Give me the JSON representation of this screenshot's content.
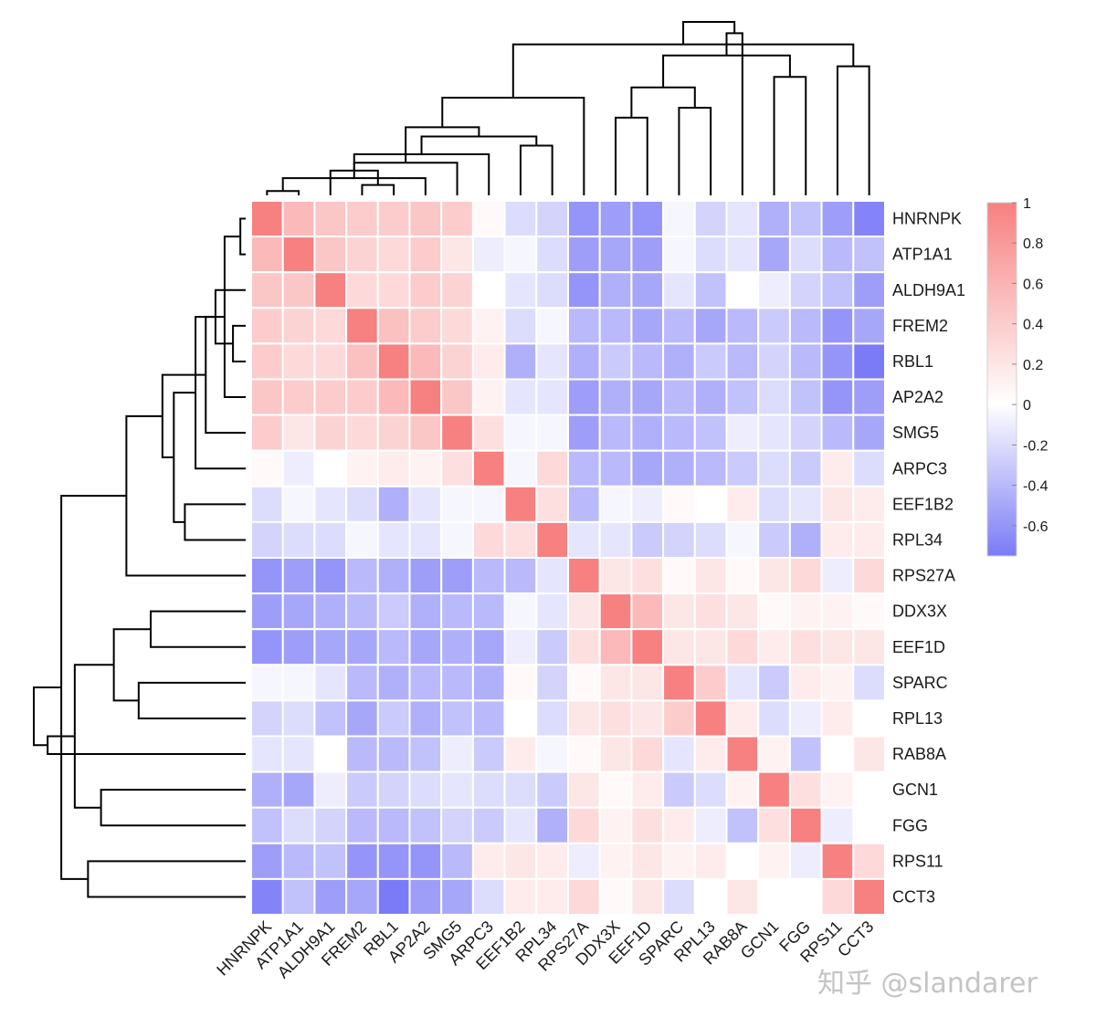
{
  "chart_data": {
    "type": "heatmap",
    "title": "",
    "genes": [
      "HNRNPK",
      "ATP1A1",
      "ALDH9A1",
      "FREM2",
      "RBL1",
      "AP2A2",
      "SMG5",
      "ARPC3",
      "EEF1B2",
      "RPL34",
      "RPS27A",
      "DDX3X",
      "EEF1D",
      "SPARC",
      "RPL13",
      "RAB8A",
      "GCN1",
      "FGG",
      "RPS11",
      "CCT3"
    ],
    "values": [
      [
        1.0,
        0.55,
        0.45,
        0.4,
        0.4,
        0.45,
        0.4,
        0.05,
        -0.2,
        -0.25,
        -0.6,
        -0.55,
        -0.6,
        -0.05,
        -0.25,
        -0.15,
        -0.45,
        -0.35,
        -0.55,
        -0.7
      ],
      [
        0.55,
        1.0,
        0.45,
        0.35,
        0.3,
        0.4,
        0.2,
        -0.1,
        -0.05,
        -0.2,
        -0.55,
        -0.5,
        -0.55,
        -0.05,
        -0.2,
        -0.15,
        -0.5,
        -0.2,
        -0.4,
        -0.35
      ],
      [
        0.45,
        0.45,
        1.0,
        0.3,
        0.3,
        0.4,
        0.35,
        0.0,
        -0.15,
        -0.2,
        -0.6,
        -0.45,
        -0.5,
        -0.15,
        -0.35,
        0.0,
        -0.1,
        -0.25,
        -0.35,
        -0.55
      ],
      [
        0.4,
        0.35,
        0.3,
        1.0,
        0.5,
        0.4,
        0.3,
        0.1,
        -0.2,
        -0.05,
        -0.4,
        -0.4,
        -0.5,
        -0.4,
        -0.5,
        -0.4,
        -0.3,
        -0.4,
        -0.6,
        -0.5
      ],
      [
        0.4,
        0.3,
        0.3,
        0.5,
        1.0,
        0.55,
        0.35,
        0.15,
        -0.45,
        -0.15,
        -0.45,
        -0.3,
        -0.4,
        -0.45,
        -0.3,
        -0.4,
        -0.25,
        -0.4,
        -0.6,
        -0.75
      ],
      [
        0.45,
        0.4,
        0.4,
        0.4,
        0.55,
        1.0,
        0.45,
        0.1,
        -0.15,
        -0.15,
        -0.55,
        -0.45,
        -0.5,
        -0.4,
        -0.45,
        -0.35,
        -0.2,
        -0.35,
        -0.6,
        -0.55
      ],
      [
        0.4,
        0.2,
        0.35,
        0.3,
        0.35,
        0.45,
        1.0,
        0.25,
        -0.05,
        -0.05,
        -0.55,
        -0.4,
        -0.45,
        -0.4,
        -0.35,
        -0.1,
        -0.15,
        -0.25,
        -0.4,
        -0.5
      ],
      [
        0.05,
        -0.1,
        0.0,
        0.1,
        0.15,
        0.1,
        0.25,
        1.0,
        -0.05,
        0.3,
        -0.4,
        -0.4,
        -0.5,
        -0.45,
        -0.4,
        -0.3,
        -0.2,
        -0.3,
        0.15,
        -0.2
      ],
      [
        -0.2,
        -0.05,
        -0.15,
        -0.2,
        -0.45,
        -0.15,
        -0.05,
        -0.05,
        1.0,
        0.25,
        -0.4,
        -0.05,
        -0.1,
        0.05,
        0.0,
        0.15,
        -0.2,
        -0.15,
        0.2,
        0.15
      ],
      [
        -0.25,
        -0.2,
        -0.2,
        -0.05,
        -0.15,
        -0.15,
        -0.05,
        0.3,
        0.25,
        1.0,
        -0.15,
        -0.15,
        -0.3,
        -0.25,
        -0.2,
        -0.05,
        -0.3,
        -0.45,
        0.15,
        0.15
      ],
      [
        -0.6,
        -0.55,
        -0.6,
        -0.4,
        -0.45,
        -0.55,
        -0.55,
        -0.4,
        -0.4,
        -0.15,
        1.0,
        0.2,
        0.25,
        0.05,
        0.2,
        0.05,
        0.2,
        0.3,
        -0.1,
        0.3
      ],
      [
        -0.55,
        -0.5,
        -0.45,
        -0.4,
        -0.3,
        -0.45,
        -0.4,
        -0.4,
        -0.05,
        -0.15,
        0.2,
        1.0,
        0.55,
        0.2,
        0.25,
        0.2,
        0.05,
        0.1,
        0.1,
        0.05
      ],
      [
        -0.6,
        -0.55,
        -0.5,
        -0.5,
        -0.4,
        -0.5,
        -0.45,
        -0.5,
        -0.1,
        -0.3,
        0.25,
        0.55,
        1.0,
        0.2,
        0.2,
        0.3,
        0.15,
        0.25,
        0.2,
        0.2
      ],
      [
        -0.05,
        -0.05,
        -0.15,
        -0.4,
        -0.45,
        -0.4,
        -0.4,
        -0.45,
        0.05,
        -0.25,
        0.05,
        0.2,
        0.2,
        1.0,
        0.4,
        -0.15,
        -0.3,
        0.15,
        0.1,
        -0.2
      ],
      [
        -0.25,
        -0.2,
        -0.35,
        -0.5,
        -0.3,
        -0.45,
        -0.35,
        -0.4,
        0.0,
        -0.2,
        0.2,
        0.25,
        0.2,
        0.4,
        1.0,
        0.15,
        -0.2,
        -0.1,
        0.15,
        0.0
      ],
      [
        -0.15,
        -0.15,
        0.0,
        -0.4,
        -0.4,
        -0.35,
        -0.1,
        -0.3,
        0.15,
        -0.05,
        0.05,
        0.2,
        0.3,
        -0.15,
        0.15,
        1.0,
        0.1,
        -0.35,
        0.0,
        0.2
      ],
      [
        -0.45,
        -0.5,
        -0.1,
        -0.3,
        -0.25,
        -0.2,
        -0.15,
        -0.2,
        -0.2,
        -0.3,
        0.2,
        0.05,
        0.15,
        -0.3,
        -0.2,
        0.1,
        1.0,
        0.25,
        0.1,
        0.0
      ],
      [
        -0.35,
        -0.2,
        -0.25,
        -0.4,
        -0.4,
        -0.35,
        -0.25,
        -0.3,
        -0.15,
        -0.45,
        0.3,
        0.1,
        0.25,
        0.15,
        -0.1,
        -0.35,
        0.25,
        1.0,
        -0.1,
        0.0
      ],
      [
        -0.55,
        -0.4,
        -0.35,
        -0.6,
        -0.6,
        -0.6,
        -0.4,
        0.15,
        0.2,
        0.15,
        -0.1,
        0.1,
        0.2,
        0.1,
        0.15,
        0.0,
        0.1,
        -0.1,
        1.0,
        0.3
      ],
      [
        -0.7,
        -0.35,
        -0.55,
        -0.5,
        -0.75,
        -0.55,
        -0.5,
        -0.2,
        0.15,
        0.15,
        0.3,
        0.05,
        0.2,
        -0.2,
        0.0,
        0.2,
        0.0,
        0.0,
        0.3,
        1.0
      ]
    ],
    "colorbar": {
      "ticks": [
        "1",
        "0.8",
        "0.6",
        "0.4",
        "0.2",
        "0",
        "-0.2",
        "-0.4",
        "-0.6"
      ],
      "tick_values": [
        1,
        0.8,
        0.6,
        0.4,
        0.2,
        0,
        -0.2,
        -0.4,
        -0.6
      ],
      "min": -0.75,
      "max": 1.0
    },
    "colors": {
      "high": "#f78080",
      "mid": "#ffffff",
      "low": "#7b7bf7",
      "grid": "#ffffff",
      "tree": "#000000"
    },
    "dendrogram": {
      "leaf_order": "genes",
      "merges": [
        [
          0,
          1
        ],
        [
          3,
          4
        ],
        [
          20,
          5
        ],
        [
          21,
          2
        ],
        [
          22,
          6
        ],
        [
          23,
          7
        ],
        [
          8,
          9
        ],
        [
          25,
          26
        ],
        [
          24,
          27
        ],
        [
          11,
          12
        ],
        [
          13,
          14
        ],
        [
          10,
          28
        ],
        [
          29,
          30
        ],
        [
          16,
          17
        ],
        [
          18,
          19
        ],
        [
          32,
          33
        ],
        [
          31,
          34
        ],
        [
          35,
          15
        ],
        [
          36,
          37
        ]
      ]
    }
  },
  "watermark": "知乎 @slandarer"
}
